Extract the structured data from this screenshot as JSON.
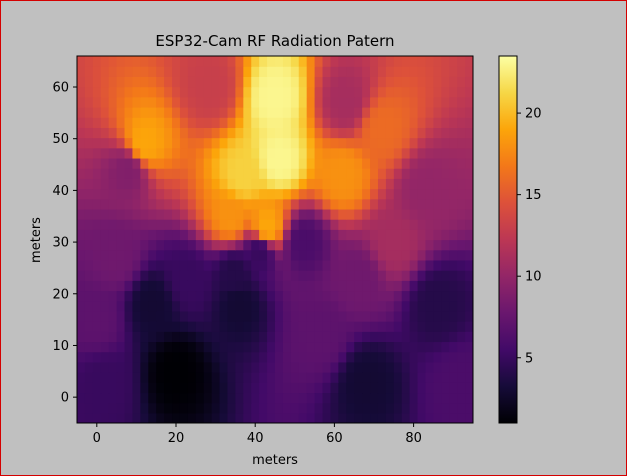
{
  "chart_data": {
    "type": "heatmap",
    "title": "ESP32-Cam RF Radiation Patern",
    "xlabel": "meters",
    "ylabel": "meters",
    "xlim": [
      -5,
      95
    ],
    "ylim": [
      -5,
      66
    ],
    "xticks": [
      0,
      20,
      40,
      60,
      80
    ],
    "yticks": [
      0,
      10,
      20,
      30,
      40,
      50,
      60
    ],
    "colormap": "inferno",
    "colorbar": {
      "range": [
        1,
        23.5
      ],
      "ticks": [
        5,
        10,
        15,
        20
      ]
    },
    "grid": false,
    "hotspots": [
      {
        "x": 45,
        "y": 58,
        "value": 23
      },
      {
        "x": 46,
        "y": 46,
        "value": 23
      },
      {
        "x": 37,
        "y": 43,
        "value": 21
      },
      {
        "x": 12,
        "y": 49,
        "value": 19
      },
      {
        "x": 62,
        "y": 43,
        "value": 18
      },
      {
        "x": 72,
        "y": 52,
        "value": 16
      },
      {
        "x": 34,
        "y": 35,
        "value": 18
      },
      {
        "x": 43,
        "y": 33,
        "value": 19
      },
      {
        "x": 20,
        "y": 5,
        "value": 1
      },
      {
        "x": 14,
        "y": 18,
        "value": 3
      },
      {
        "x": 36,
        "y": 18,
        "value": 3
      },
      {
        "x": 35,
        "y": 24,
        "value": 4
      },
      {
        "x": 41,
        "y": 28,
        "value": 5
      },
      {
        "x": 52,
        "y": 30,
        "value": 6
      },
      {
        "x": 23,
        "y": 23,
        "value": 5
      },
      {
        "x": 68,
        "y": 3,
        "value": 3
      },
      {
        "x": 86,
        "y": 18,
        "value": 4
      },
      {
        "x": 2,
        "y": 3,
        "value": 5
      },
      {
        "x": 8,
        "y": 44,
        "value": 9
      },
      {
        "x": 29,
        "y": 60,
        "value": 13
      },
      {
        "x": 63,
        "y": 57,
        "value": 11
      },
      {
        "x": 83,
        "y": 40,
        "value": 10
      },
      {
        "x": 66,
        "y": 23,
        "value": 8
      },
      {
        "x": 5,
        "y": 27,
        "value": 8
      },
      {
        "x": 75,
        "y": 30,
        "value": 11
      },
      {
        "x": 57,
        "y": 12,
        "value": 7
      },
      {
        "x": 0,
        "y": 15,
        "value": 7
      },
      {
        "x": 92,
        "y": 3,
        "value": 6
      }
    ]
  }
}
